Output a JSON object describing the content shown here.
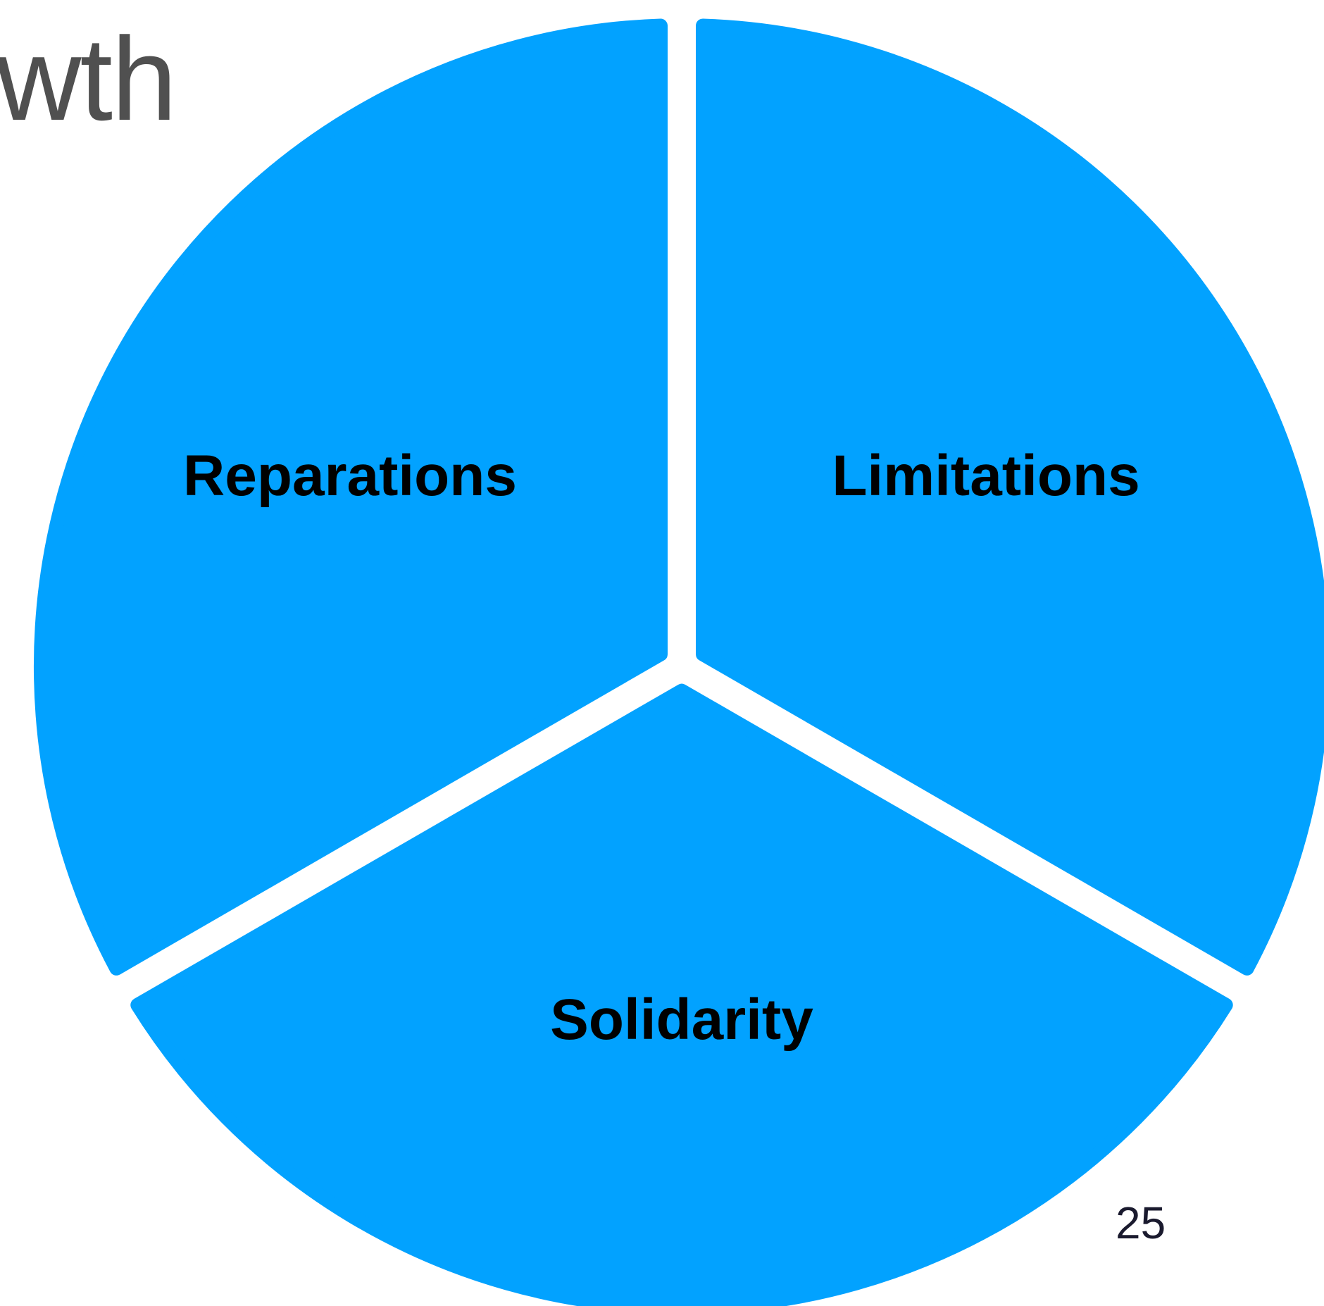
{
  "slide": {
    "title_fragment": "wth",
    "page_number": "25"
  },
  "diagram": {
    "segment_color": "#02A2FF",
    "segments": [
      {
        "id": "reparations",
        "label": "Reparations"
      },
      {
        "id": "limitations",
        "label": "Limitations"
      },
      {
        "id": "solidarity",
        "label": "Solidarity"
      }
    ]
  }
}
